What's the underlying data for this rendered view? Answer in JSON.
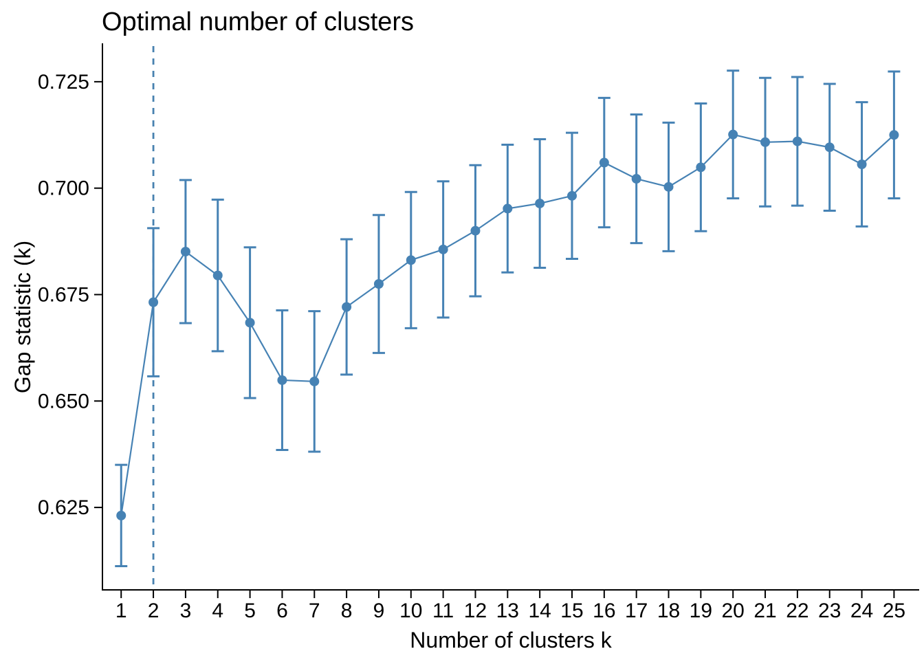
{
  "chart_data": {
    "type": "line",
    "title": "Optimal number of clusters",
    "xlabel": "Number of clusters k",
    "ylabel": "Gap statistic (k)",
    "grid": false,
    "legend": "none",
    "x": [
      1,
      2,
      3,
      4,
      5,
      6,
      7,
      8,
      9,
      10,
      11,
      12,
      13,
      14,
      15,
      16,
      17,
      18,
      19,
      20,
      21,
      22,
      23,
      24,
      25
    ],
    "series": [
      {
        "name": "Gap statistic",
        "values": [
          0.6231,
          0.6732,
          0.6851,
          0.6795,
          0.6684,
          0.6549,
          0.6546,
          0.6721,
          0.6775,
          0.6831,
          0.6856,
          0.69,
          0.6952,
          0.6964,
          0.6982,
          0.706,
          0.7022,
          0.7003,
          0.7049,
          0.7126,
          0.7108,
          0.711,
          0.7096,
          0.7056,
          0.7125
        ],
        "error_low": [
          0.6112,
          0.6558,
          0.6683,
          0.6617,
          0.6507,
          0.6385,
          0.6381,
          0.6562,
          0.6613,
          0.6671,
          0.6696,
          0.6746,
          0.6802,
          0.6813,
          0.6834,
          0.6908,
          0.6871,
          0.6852,
          0.6899,
          0.6976,
          0.6957,
          0.6959,
          0.6947,
          0.691,
          0.6976
        ],
        "error_high": [
          0.635,
          0.6906,
          0.7019,
          0.6973,
          0.6861,
          0.6713,
          0.6711,
          0.688,
          0.6937,
          0.6991,
          0.7016,
          0.7054,
          0.7102,
          0.7115,
          0.713,
          0.7212,
          0.7173,
          0.7154,
          0.7199,
          0.7276,
          0.7259,
          0.7261,
          0.7245,
          0.7202,
          0.7274
        ]
      }
    ],
    "optimal_k": 2,
    "x_tick_labels": [
      "1",
      "2",
      "3",
      "4",
      "5",
      "6",
      "7",
      "8",
      "9",
      "10",
      "11",
      "12",
      "13",
      "14",
      "15",
      "16",
      "17",
      "18",
      "19",
      "20",
      "21",
      "22",
      "23",
      "24",
      "25"
    ],
    "y_tick_labels": [
      "0.625",
      "0.650",
      "0.675",
      "0.700",
      "0.725"
    ],
    "y_tick_values": [
      0.625,
      0.65,
      0.675,
      0.7,
      0.725
    ],
    "xlim": [
      0.44,
      25.76
    ],
    "ylim": [
      0.6058,
      0.7337
    ],
    "colors": {
      "series": "#4682B4",
      "vline": "#4781AF",
      "axis": "#000000",
      "text": "#000000",
      "background": "#FFFFFF"
    }
  }
}
